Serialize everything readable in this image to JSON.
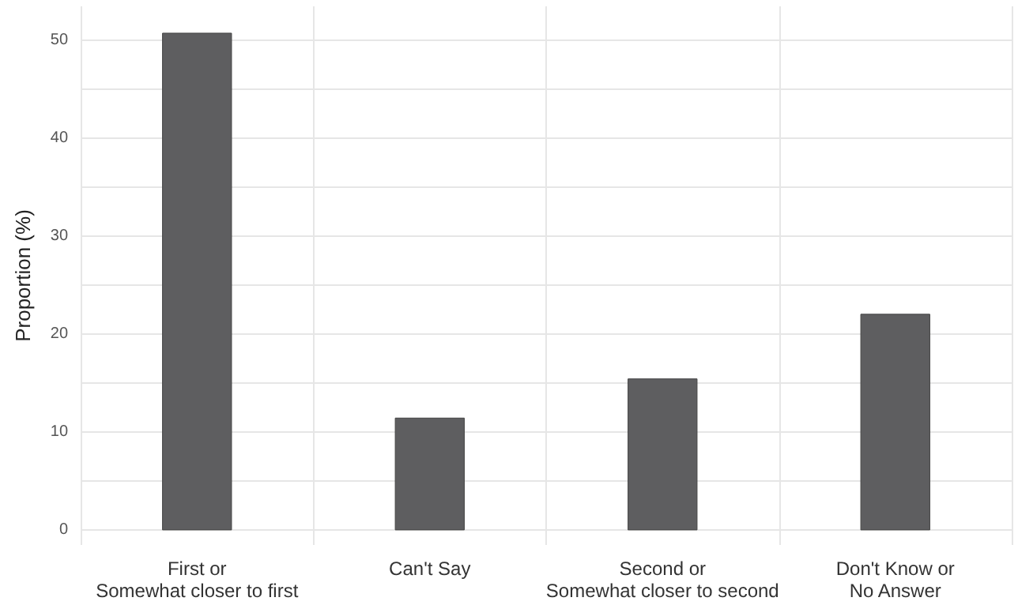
{
  "chart_data": {
    "type": "bar",
    "ylabel": "Proportion (%)",
    "categories": [
      "First or\nSomewhat closer to first",
      "Can't Say",
      "Second or\nSomewhat closer to second",
      "Don't Know or\nNo Answer"
    ],
    "values": [
      50.8,
      11.5,
      15.5,
      22.1
    ],
    "color": "#5e5e60",
    "ylim": [
      -1.5,
      53.5
    ],
    "yticks": [
      0,
      {
        "value": 5,
        "label": null
      },
      10,
      {
        "value": 15,
        "label": null
      },
      20,
      {
        "value": 25,
        "label": null
      },
      30,
      {
        "value": 35,
        "label": null
      },
      40,
      {
        "value": 45,
        "label": null
      },
      50
    ],
    "grid": true
  }
}
